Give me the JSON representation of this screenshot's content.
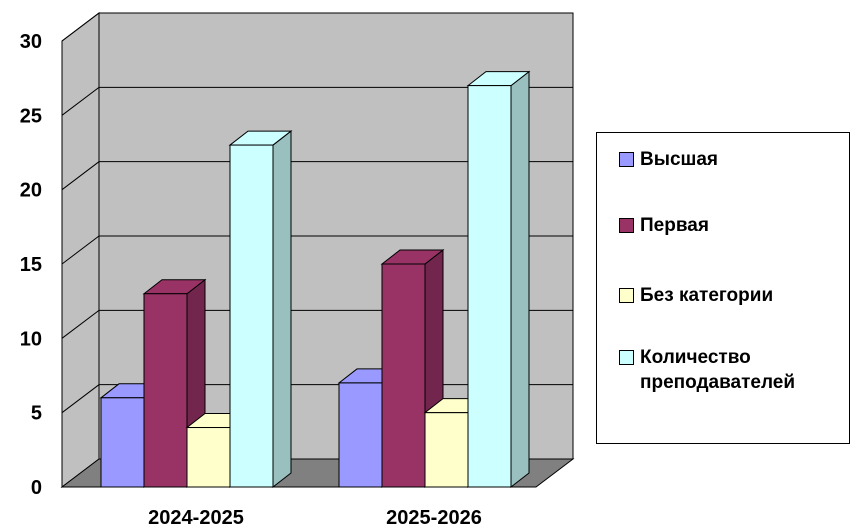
{
  "chart_data": {
    "type": "bar",
    "categories": [
      "2024-2025",
      "2025-2026"
    ],
    "series": [
      {
        "name": "Высшая",
        "values": [
          6,
          7
        ],
        "color": "#9999ff",
        "side_color": "#7373bf"
      },
      {
        "name": "Первая",
        "values": [
          13,
          15
        ],
        "color": "#993366",
        "side_color": "#73264d"
      },
      {
        "name": "Без категории",
        "values": [
          4,
          5
        ],
        "color": "#ffffcc",
        "side_color": "#bfbf99"
      },
      {
        "name": "Количество преподавателей",
        "values": [
          23,
          27
        ],
        "color": "#ccffff",
        "side_color": "#99bfbf"
      }
    ],
    "y_ticks": [
      "0",
      "5",
      "10",
      "15",
      "20",
      "25",
      "30"
    ],
    "ylim": [
      0,
      30
    ],
    "grid": true,
    "legend_position": "right",
    "wall_color": "#c0c0c0",
    "floor_color": "#808080"
  }
}
